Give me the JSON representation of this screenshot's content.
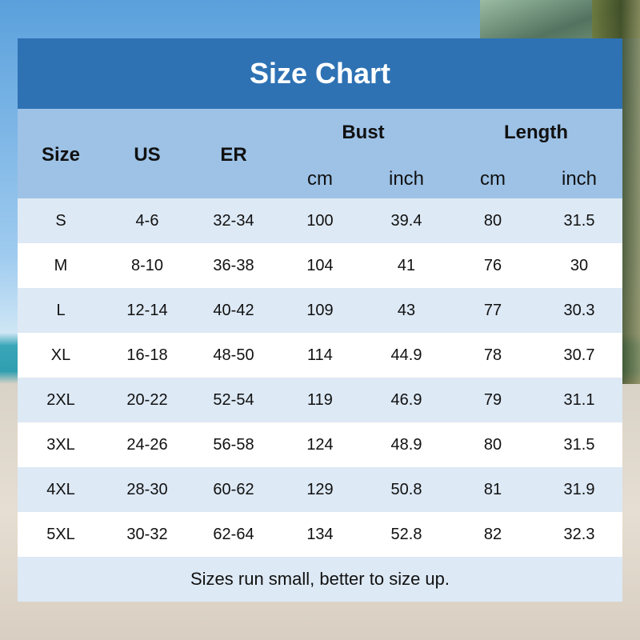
{
  "title": "Size Chart",
  "headers": {
    "size": "Size",
    "us": "US",
    "er": "ER",
    "bust": "Bust",
    "length": "Length",
    "cm": "cm",
    "inch": "inch"
  },
  "rows": [
    [
      "S",
      "4-6",
      "32-34",
      "100",
      "39.4",
      "80",
      "31.5"
    ],
    [
      "M",
      "8-10",
      "36-38",
      "104",
      "41",
      "76",
      "30"
    ],
    [
      "L",
      "12-14",
      "40-42",
      "109",
      "43",
      "77",
      "30.3"
    ],
    [
      "XL",
      "16-18",
      "48-50",
      "114",
      "44.9",
      "78",
      "30.7"
    ],
    [
      "2XL",
      "20-22",
      "52-54",
      "119",
      "46.9",
      "79",
      "31.1"
    ],
    [
      "3XL",
      "24-26",
      "56-58",
      "124",
      "48.9",
      "80",
      "31.5"
    ],
    [
      "4XL",
      "28-30",
      "60-62",
      "129",
      "50.8",
      "81",
      "31.9"
    ],
    [
      "5XL",
      "30-32",
      "62-64",
      "134",
      "52.8",
      "82",
      "32.3"
    ]
  ],
  "footer": "Sizes run small, better to size up.",
  "colors": {
    "title_bg": "#2e72b4",
    "header_bg": "#9dc2e6",
    "stripe": "#dde9f5"
  }
}
